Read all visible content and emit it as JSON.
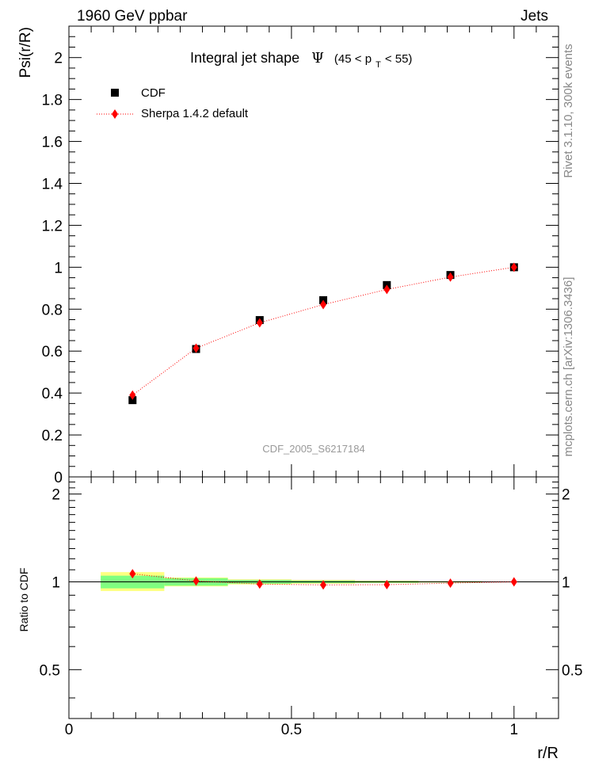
{
  "header": {
    "left": "1960 GeV ppbar",
    "right": "Jets"
  },
  "side_labels": {
    "rivet": "Rivet 3.1.10,  300k events",
    "mcplots": "mcplots.cern.ch [arXiv:1306.3436]"
  },
  "plot_title": {
    "main": "Integral jet shape",
    "psi": "Ψ",
    "range_open": "(45 < p",
    "range_sub": "T",
    "range_close": " < 55)"
  },
  "watermark": "CDF_2005_S6217184",
  "colors": {
    "data": "#000000",
    "mc": "#ff0000",
    "band_inner": "#80ff80",
    "band_outer": "#ffff80"
  },
  "chart_data": [
    {
      "type": "scatter",
      "ylabel": "Psi(r/R)",
      "xlim": [
        0,
        1.1
      ],
      "ylim": [
        0,
        2.15
      ],
      "yticks": [
        0,
        0.2,
        0.4,
        0.6,
        0.8,
        1,
        1.2,
        1.4,
        1.6,
        1.8,
        2
      ],
      "ytick_labels": [
        "0",
        "0.2",
        "0.4",
        "0.6",
        "0.8",
        "1",
        "1.2",
        "1.4",
        "1.6",
        "1.8",
        "2"
      ],
      "legend_position": "top-left",
      "series": [
        {
          "name": "CDF",
          "marker": "square",
          "x": [
            0.1429,
            0.2857,
            0.4286,
            0.5714,
            0.7143,
            0.8571,
            1.0
          ],
          "y": [
            0.366,
            0.61,
            0.748,
            0.843,
            0.915,
            0.963,
            1.0
          ]
        },
        {
          "name": "Sherpa 1.4.2 default",
          "marker": "diamond",
          "line": "dotted",
          "x": [
            0.1429,
            0.2857,
            0.4286,
            0.5714,
            0.7143,
            0.8571,
            1.0
          ],
          "y": [
            0.39,
            0.614,
            0.735,
            0.822,
            0.894,
            0.953,
            1.0
          ]
        }
      ]
    },
    {
      "type": "scatter",
      "ylabel": "Ratio to CDF",
      "xlabel": "r/R",
      "xlim": [
        0,
        1.1
      ],
      "ylim": [
        0.34,
        2.29
      ],
      "yticks": [
        0.5,
        1,
        2
      ],
      "ytick_labels": [
        "0.5",
        "1",
        "2"
      ],
      "xticks": [
        0,
        0.5,
        1
      ],
      "xtick_labels": [
        "0",
        "0.5",
        "1"
      ],
      "bands": [
        {
          "x": [
            0.0714,
            0.2143
          ],
          "inner": [
            0.95,
            1.05
          ],
          "outer": [
            0.93,
            1.08
          ]
        },
        {
          "x": [
            0.2143,
            0.3571
          ],
          "inner": [
            0.97,
            1.03
          ],
          "outer": [
            0.965,
            1.035
          ]
        },
        {
          "x": [
            0.3571,
            0.5
          ],
          "inner": [
            0.985,
            1.015
          ],
          "outer": [
            0.98,
            1.02
          ]
        },
        {
          "x": [
            0.5,
            0.6429
          ],
          "inner": [
            0.99,
            1.01
          ],
          "outer": [
            0.985,
            1.015
          ]
        },
        {
          "x": [
            0.6429,
            0.7857
          ],
          "inner": [
            0.993,
            1.007
          ],
          "outer": [
            0.99,
            1.01
          ]
        },
        {
          "x": [
            0.7857,
            0.9286
          ],
          "inner": [
            0.996,
            1.004
          ],
          "outer": [
            0.994,
            1.006
          ]
        },
        {
          "x": [
            0.9286,
            1.0714
          ],
          "inner": [
            0.998,
            1.002
          ],
          "outer": [
            0.997,
            1.003
          ]
        }
      ],
      "series": [
        {
          "name": "Sherpa 1.4.2 default",
          "marker": "diamond",
          "line": "dotted",
          "x": [
            0.1429,
            0.2857,
            0.4286,
            0.5714,
            0.7143,
            0.8571,
            1.0
          ],
          "y": [
            1.066,
            1.007,
            0.983,
            0.976,
            0.978,
            0.99,
            1.0
          ]
        }
      ]
    }
  ]
}
